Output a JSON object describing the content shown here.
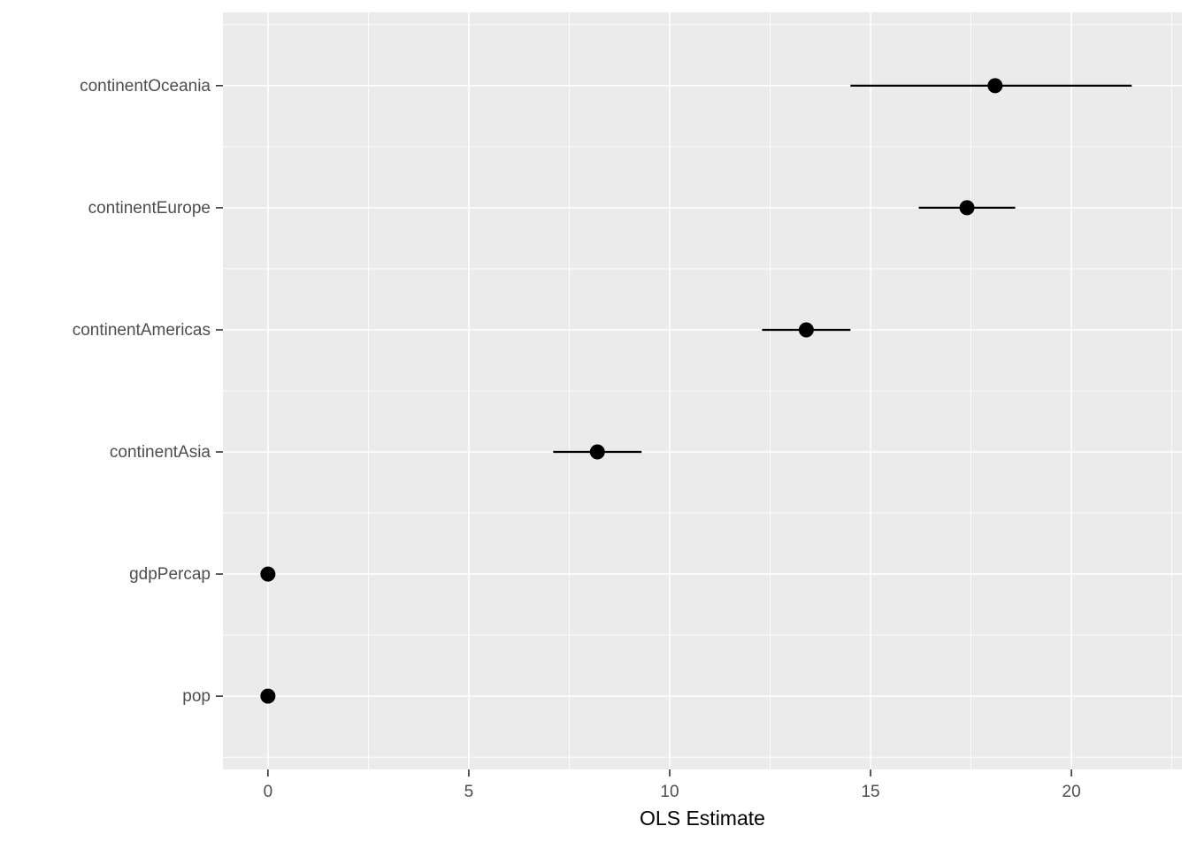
{
  "page": {
    "background": "#FFFFFF"
  },
  "chart_data": {
    "type": "scatter",
    "subtype": "dot-whisker-coefficient-plot",
    "title": "",
    "xlabel": "OLS Estimate",
    "ylabel": "",
    "categories": [
      "continentOceania",
      "continentEurope",
      "continentAmericas",
      "continentAsia",
      "gdpPercap",
      "pop"
    ],
    "points": [
      {
        "label": "continentOceania",
        "estimate": 18.1,
        "ci_low": 14.5,
        "ci_high": 21.5
      },
      {
        "label": "continentEurope",
        "estimate": 17.4,
        "ci_low": 16.2,
        "ci_high": 18.6
      },
      {
        "label": "continentAmericas",
        "estimate": 13.4,
        "ci_low": 12.3,
        "ci_high": 14.5
      },
      {
        "label": "continentAsia",
        "estimate": 8.2,
        "ci_low": 7.1,
        "ci_high": 9.3
      },
      {
        "label": "gdpPercap",
        "estimate": 0,
        "ci_low": 0,
        "ci_high": 0
      },
      {
        "label": "pop",
        "estimate": 0,
        "ci_low": 0,
        "ci_high": 0
      }
    ],
    "x_ticks": [
      0,
      5,
      10,
      15,
      20
    ],
    "x_tick_labels": [
      "0",
      "5",
      "10",
      "15",
      "20"
    ],
    "xlim": [
      -1.12,
      22.75
    ],
    "grid": true,
    "legend": "none",
    "style": {
      "panel_bg": "#EBEBEB",
      "grid_major_color": "#FFFFFF",
      "grid_minor_color": "#FFFFFF",
      "point_color": "#000000",
      "whisker_color": "#000000",
      "axis_text_color": "#4D4D4D",
      "axis_title_color": "#000000",
      "tick_color": "#333333",
      "background": "#FFFFFF"
    }
  }
}
